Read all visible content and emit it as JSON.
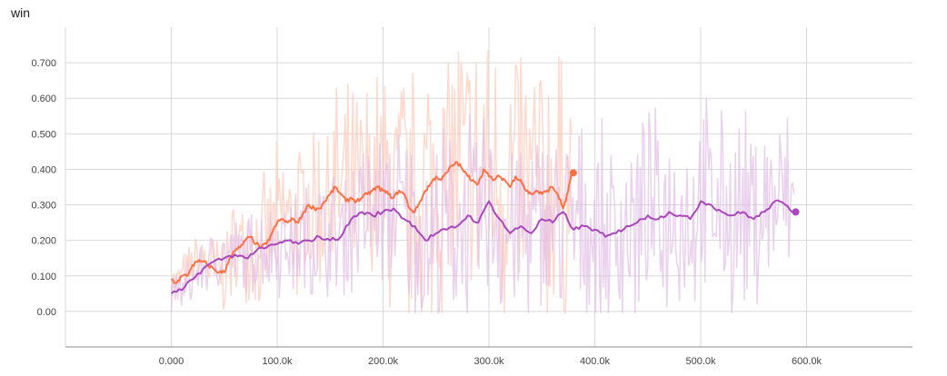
{
  "chart_data": {
    "type": "line",
    "title": "win",
    "xlabel": "",
    "ylabel": "",
    "xlim": [
      -100000,
      700000
    ],
    "ylim": [
      -0.1,
      0.8
    ],
    "grid": true,
    "x_ticks": [
      "0.000",
      "100.0k",
      "200.0k",
      "300.0k",
      "400.0k",
      "500.0k",
      "600.0k"
    ],
    "y_ticks": [
      "0.00",
      "0.100",
      "0.200",
      "0.300",
      "0.400",
      "0.500",
      "0.600",
      "0.700"
    ],
    "series": [
      {
        "color": "#ff7043",
        "raw_color": "#ffccbc",
        "end_marker": true,
        "x": [
          0,
          5000,
          10000,
          15000,
          20000,
          25000,
          30000,
          35000,
          40000,
          45000,
          50000,
          55000,
          60000,
          65000,
          70000,
          75000,
          80000,
          85000,
          90000,
          95000,
          100000,
          105000,
          110000,
          115000,
          120000,
          125000,
          130000,
          135000,
          140000,
          145000,
          150000,
          155000,
          160000,
          165000,
          170000,
          175000,
          180000,
          185000,
          190000,
          195000,
          200000,
          205000,
          210000,
          215000,
          220000,
          225000,
          230000,
          235000,
          240000,
          245000,
          250000,
          255000,
          260000,
          265000,
          270000,
          275000,
          280000,
          285000,
          290000,
          295000,
          300000,
          305000,
          310000,
          315000,
          320000,
          325000,
          330000,
          335000,
          340000,
          345000,
          350000,
          355000,
          360000,
          365000,
          370000,
          375000,
          378000
        ],
        "values": [
          0.09,
          0.08,
          0.1,
          0.1,
          0.13,
          0.14,
          0.14,
          0.13,
          0.12,
          0.11,
          0.11,
          0.15,
          0.17,
          0.18,
          0.2,
          0.21,
          0.19,
          0.18,
          0.19,
          0.22,
          0.25,
          0.26,
          0.25,
          0.26,
          0.25,
          0.28,
          0.3,
          0.29,
          0.29,
          0.31,
          0.33,
          0.35,
          0.33,
          0.31,
          0.32,
          0.31,
          0.32,
          0.33,
          0.34,
          0.35,
          0.34,
          0.33,
          0.32,
          0.34,
          0.33,
          0.29,
          0.28,
          0.31,
          0.34,
          0.36,
          0.38,
          0.37,
          0.39,
          0.41,
          0.42,
          0.4,
          0.38,
          0.37,
          0.36,
          0.4,
          0.38,
          0.37,
          0.38,
          0.37,
          0.35,
          0.38,
          0.37,
          0.34,
          0.33,
          0.34,
          0.33,
          0.34,
          0.35,
          0.33,
          0.29,
          0.34,
          0.39
        ]
      },
      {
        "color": "#ab47bc",
        "raw_color": "#e1bee7",
        "end_marker": true,
        "x": [
          0,
          10000,
          20000,
          30000,
          40000,
          50000,
          60000,
          70000,
          80000,
          90000,
          100000,
          110000,
          120000,
          130000,
          140000,
          150000,
          160000,
          170000,
          180000,
          190000,
          200000,
          210000,
          220000,
          230000,
          240000,
          250000,
          260000,
          270000,
          280000,
          290000,
          300000,
          310000,
          320000,
          330000,
          340000,
          350000,
          360000,
          370000,
          380000,
          390000,
          400000,
          410000,
          420000,
          430000,
          440000,
          450000,
          460000,
          470000,
          480000,
          490000,
          500000,
          510000,
          520000,
          530000,
          540000,
          550000,
          560000,
          570000,
          580000,
          588000
        ],
        "values": [
          0.05,
          0.06,
          0.09,
          0.12,
          0.14,
          0.15,
          0.16,
          0.15,
          0.17,
          0.18,
          0.19,
          0.2,
          0.19,
          0.2,
          0.21,
          0.2,
          0.21,
          0.26,
          0.28,
          0.27,
          0.28,
          0.29,
          0.26,
          0.24,
          0.2,
          0.22,
          0.23,
          0.24,
          0.27,
          0.25,
          0.31,
          0.26,
          0.22,
          0.24,
          0.22,
          0.26,
          0.25,
          0.28,
          0.23,
          0.24,
          0.23,
          0.21,
          0.22,
          0.24,
          0.25,
          0.27,
          0.26,
          0.28,
          0.27,
          0.26,
          0.31,
          0.3,
          0.28,
          0.27,
          0.28,
          0.26,
          0.28,
          0.31,
          0.3,
          0.28
        ]
      }
    ]
  }
}
